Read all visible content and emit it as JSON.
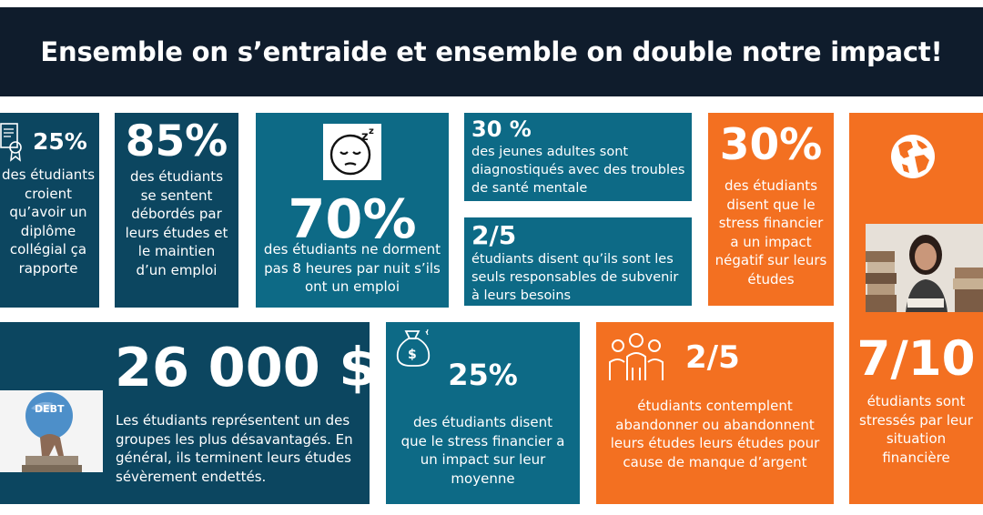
{
  "header": {
    "title": "Ensemble on s’entraide et ensemble on double notre impact!"
  },
  "tiles": {
    "t1": {
      "stat": "25%",
      "text": "des étudiants croient qu’avoir un diplôme collégial ça rapporte",
      "icon": "diploma-icon"
    },
    "t2": {
      "stat": "85%",
      "text": "des étudiants se sentent débordés par leurs études et le maintien d’un emploi"
    },
    "t3": {
      "stat": "70%",
      "text": "des étudiants ne dorment pas 8 heures par nuit s’ils ont un emploi",
      "icon": "sleeping-face-icon"
    },
    "t4": {
      "stat": "30 %",
      "text": "des jeunes adultes sont diagnostiqués avec des troubles de santé mentale"
    },
    "t5": {
      "stat": "2/5",
      "text": "étudiants disent qu’ils sont les seuls responsables de subvenir à leurs besoins"
    },
    "t6": {
      "stat": "30%",
      "text": "des étudiants disent que le stress financier a un impact négatif sur leurs études"
    },
    "t7": {
      "stat": "7/10",
      "text": "étudiants sont stressés par leur situation financière",
      "icon": "globe-icon"
    },
    "t8": {
      "stat": "26 000 $",
      "text": "Les étudiants représentent un des groupes les plus désavantagés. En général, ils terminent leurs études sévèrement endettés.",
      "debt_label": "DEBT",
      "icon": "debt-atlas-icon"
    },
    "t9": {
      "stat": "25%",
      "text": "des étudiants disent que le stress financier a un impact sur leur moyenne",
      "icon": "money-bag-icon"
    },
    "t10": {
      "stat": "2/5",
      "text": "étudiants contemplent abandonner ou abandonnent leurs études leurs études pour cause de manque d’argent",
      "icon": "group-icon"
    }
  },
  "colors": {
    "header": "#0f1c2c",
    "navy": "#0c4660",
    "teal": "#0d6a86",
    "orange": "#f37021"
  }
}
